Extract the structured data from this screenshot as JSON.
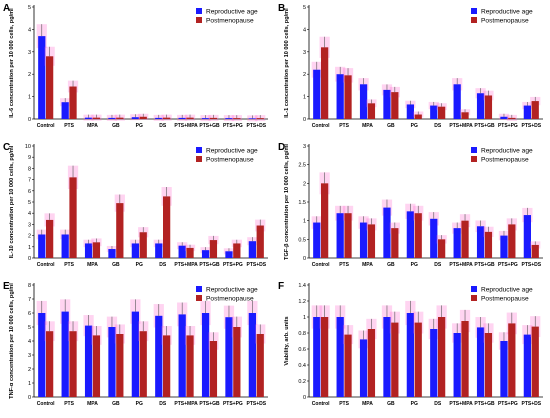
{
  "colors": {
    "reproductive": "#1a1aff",
    "postmenopause": "#b22222",
    "error_halo": "#ff66cc"
  },
  "chart_data": [
    {
      "panel": "A",
      "type": "bar",
      "ylabel": "IL-6 concentration per 10 000 cells, pg/ml",
      "ylim": [
        0,
        5
      ],
      "yticks": [
        0,
        1,
        2,
        3,
        4,
        5
      ],
      "categories": [
        "Control",
        "PTS",
        "MPA",
        "GB",
        "PG",
        "DS",
        "PTS+MPA",
        "PTS+GB",
        "PTS+PG",
        "PTS+DS"
      ],
      "legend_position": "top-right",
      "series": [
        {
          "name": "Reproductive age",
          "values": [
            3.7,
            0.75,
            0.06,
            0.05,
            0.08,
            0.05,
            0.05,
            0.04,
            0.04,
            0.03
          ]
        },
        {
          "name": "Postmenopause",
          "values": [
            2.8,
            1.45,
            0.06,
            0.06,
            0.1,
            0.06,
            0.06,
            0.05,
            0.04,
            0.04
          ]
        }
      ]
    },
    {
      "panel": "B",
      "type": "bar",
      "ylabel": "IL-1 concentration per 10 000 cells, pg/ml",
      "ylim": [
        0,
        5
      ],
      "yticks": [
        0,
        1,
        2,
        3,
        4,
        5
      ],
      "categories": [
        "Control",
        "PTS",
        "MPA",
        "GB",
        "PG",
        "DS",
        "PTS+MPA",
        "PTS+GB",
        "PTS+PG",
        "PTS+DS"
      ],
      "legend_position": "top-right",
      "series": [
        {
          "name": "Reproductive age",
          "values": [
            2.2,
            2.0,
            1.55,
            1.3,
            0.65,
            0.6,
            1.55,
            1.15,
            0.1,
            0.6
          ]
        },
        {
          "name": "Postmenopause",
          "values": [
            3.2,
            1.95,
            0.7,
            1.2,
            0.2,
            0.55,
            0.3,
            1.05,
            0.05,
            0.8
          ]
        }
      ]
    },
    {
      "panel": "C",
      "type": "bar",
      "ylabel": "IL-10 concentration per 10 000 cells, pg/ml",
      "ylim": [
        0,
        10
      ],
      "yticks": [
        0,
        1,
        2,
        3,
        4,
        5,
        6,
        7,
        8,
        9,
        10
      ],
      "categories": [
        "Control",
        "PTS",
        "MPA",
        "GB",
        "PG",
        "DS",
        "PTS+MPA",
        "PTS+GB",
        "PTS+PG",
        "PTS+DS"
      ],
      "legend_position": "top-right",
      "series": [
        {
          "name": "Reproductive age",
          "values": [
            2.1,
            2.1,
            1.3,
            0.8,
            1.3,
            1.3,
            1.1,
            0.7,
            0.6,
            1.5
          ]
        },
        {
          "name": "Postmenopause",
          "values": [
            3.4,
            7.2,
            1.4,
            4.9,
            2.3,
            5.5,
            0.9,
            1.6,
            1.3,
            2.9
          ]
        }
      ]
    },
    {
      "panel": "D",
      "type": "bar",
      "ylabel": "TGF-β concentration per 10 000 cells, pg/ml",
      "ylim": [
        0,
        3
      ],
      "yticks": [
        0,
        0.5,
        1,
        1.5,
        2,
        2.5,
        3
      ],
      "categories": [
        "Control",
        "PTS",
        "MPA",
        "GB",
        "PG",
        "DS",
        "PTS+MPA",
        "PTS+GB",
        "PTS+PG",
        "PTS+DS"
      ],
      "legend_position": "top-right",
      "series": [
        {
          "name": "Reproductive age",
          "values": [
            0.95,
            1.2,
            0.95,
            1.35,
            1.25,
            1.05,
            0.8,
            0.85,
            0.6,
            1.15
          ]
        },
        {
          "name": "Postmenopause",
          "values": [
            2.0,
            1.2,
            0.9,
            0.8,
            1.2,
            0.5,
            1.0,
            0.7,
            0.9,
            0.35
          ]
        }
      ]
    },
    {
      "panel": "E",
      "type": "bar",
      "ylabel": "TNF-α concentration per 10 000 cells, pg/ml",
      "ylim": [
        0,
        8
      ],
      "yticks": [
        0,
        1,
        2,
        3,
        4,
        5,
        6,
        7,
        8
      ],
      "categories": [
        "Control",
        "PTS",
        "MPA",
        "GB",
        "PG",
        "DS",
        "PTS+MPA",
        "PTS+GB",
        "PTS+PG",
        "PTS+DS"
      ],
      "legend_position": "top-right",
      "series": [
        {
          "name": "Reproductive age",
          "values": [
            6.0,
            6.1,
            5.1,
            5.0,
            6.1,
            5.8,
            5.9,
            6.0,
            5.7,
            6.0
          ]
        },
        {
          "name": "Postmenopause",
          "values": [
            4.7,
            4.7,
            4.4,
            4.5,
            4.7,
            4.4,
            4.4,
            4.0,
            5.0,
            4.5
          ]
        }
      ]
    },
    {
      "panel": "F",
      "type": "bar",
      "ylabel": "Viability, arb. units",
      "ylim": [
        0,
        1.4
      ],
      "yticks": [
        0,
        0.2,
        0.4,
        0.6,
        0.8,
        1,
        1.2,
        1.4
      ],
      "categories": [
        "Control",
        "PTS",
        "MPA",
        "GB",
        "PG",
        "DS",
        "PTS+MPA",
        "PTS+GB",
        "PTS+PG",
        "PTS+DS"
      ],
      "legend_position": "top-right",
      "series": [
        {
          "name": "Reproductive age",
          "values": [
            1.0,
            1.0,
            0.72,
            1.0,
            1.05,
            0.85,
            0.8,
            0.87,
            0.7,
            0.78
          ]
        },
        {
          "name": "Postmenopause",
          "values": [
            1.0,
            0.78,
            0.85,
            0.93,
            0.93,
            1.0,
            0.95,
            0.8,
            0.92,
            0.88
          ]
        }
      ]
    }
  ]
}
